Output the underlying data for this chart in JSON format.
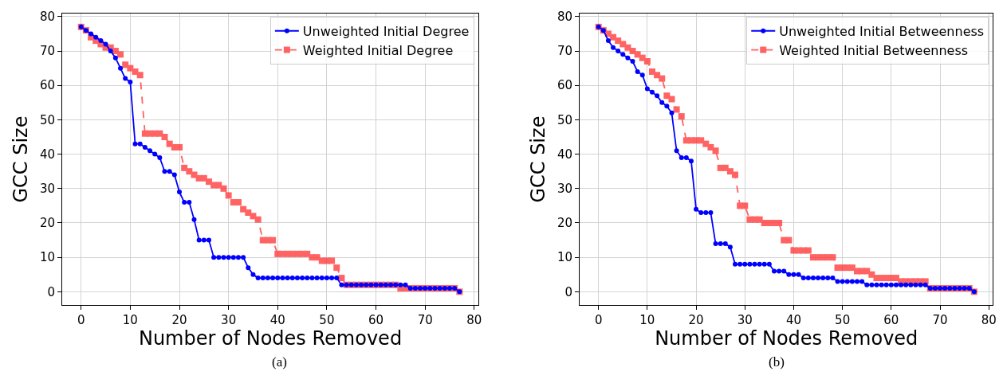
{
  "chart_data": [
    {
      "type": "line",
      "xlabel": "Number of Nodes Removed",
      "ylabel": "GCC Size",
      "annotations": [
        "(a)"
      ],
      "x": [
        0,
        1,
        2,
        3,
        4,
        5,
        6,
        7,
        8,
        9,
        10,
        11,
        12,
        13,
        14,
        15,
        16,
        17,
        18,
        19,
        20,
        21,
        22,
        23,
        24,
        25,
        26,
        27,
        28,
        29,
        30,
        31,
        32,
        33,
        34,
        35,
        36,
        37,
        38,
        39,
        40,
        41,
        42,
        43,
        44,
        45,
        46,
        47,
        48,
        49,
        50,
        51,
        52,
        53,
        54,
        55,
        56,
        57,
        58,
        59,
        60,
        61,
        62,
        63,
        64,
        65,
        66,
        67,
        68,
        69,
        70,
        71,
        72,
        73,
        74,
        75,
        76,
        77
      ],
      "xlim": [
        -3.85,
        80.85
      ],
      "xticks": [
        0,
        10,
        20,
        30,
        40,
        50,
        60,
        70,
        80
      ],
      "ylim": [
        -3.85,
        80.85
      ],
      "yticks": [
        0,
        10,
        20,
        30,
        40,
        50,
        60,
        70,
        80
      ],
      "grid": true,
      "legend": "top right",
      "series": [
        {
          "name": "Unweighted Initial Degree",
          "color": "#0000ff",
          "marker": "circle",
          "line_style": "solid",
          "values": [
            77,
            76,
            75,
            74,
            73,
            72,
            70,
            68,
            65,
            62,
            61,
            43,
            43,
            42,
            41,
            40,
            39,
            35,
            35,
            34,
            29,
            26,
            26,
            21,
            15,
            15,
            15,
            10,
            10,
            10,
            10,
            10,
            10,
            10,
            7,
            5,
            4,
            4,
            4,
            4,
            4,
            4,
            4,
            4,
            4,
            4,
            4,
            4,
            4,
            4,
            4,
            4,
            4,
            2,
            2,
            2,
            2,
            2,
            2,
            2,
            2,
            2,
            2,
            2,
            2,
            2,
            2,
            1,
            1,
            1,
            1,
            1,
            1,
            1,
            1,
            1,
            1,
            0
          ]
        },
        {
          "name": "Weighted Initial Degree",
          "color": "#ff3030",
          "marker": "square",
          "line_style": "dashed",
          "values": [
            77,
            76,
            74,
            73,
            72,
            71,
            71,
            70,
            69,
            66,
            65,
            64,
            63,
            46,
            46,
            46,
            46,
            45,
            43,
            42,
            42,
            36,
            35,
            34,
            33,
            33,
            32,
            31,
            31,
            30,
            28,
            26,
            26,
            24,
            23,
            22,
            21,
            15,
            15,
            15,
            11,
            11,
            11,
            11,
            11,
            11,
            11,
            10,
            10,
            9,
            9,
            9,
            7,
            4,
            2,
            2,
            2,
            2,
            2,
            2,
            2,
            2,
            2,
            2,
            2,
            1,
            1,
            1,
            1,
            1,
            1,
            1,
            1,
            1,
            1,
            1,
            1,
            0
          ]
        }
      ]
    },
    {
      "type": "line",
      "xlabel": "Number of Nodes Removed",
      "ylabel": "GCC Size",
      "annotations": [
        "(b)"
      ],
      "x": [
        0,
        1,
        2,
        3,
        4,
        5,
        6,
        7,
        8,
        9,
        10,
        11,
        12,
        13,
        14,
        15,
        16,
        17,
        18,
        19,
        20,
        21,
        22,
        23,
        24,
        25,
        26,
        27,
        28,
        29,
        30,
        31,
        32,
        33,
        34,
        35,
        36,
        37,
        38,
        39,
        40,
        41,
        42,
        43,
        44,
        45,
        46,
        47,
        48,
        49,
        50,
        51,
        52,
        53,
        54,
        55,
        56,
        57,
        58,
        59,
        60,
        61,
        62,
        63,
        64,
        65,
        66,
        67,
        68,
        69,
        70,
        71,
        72,
        73,
        74,
        75,
        76,
        77
      ],
      "xlim": [
        -3.85,
        80.85
      ],
      "xticks": [
        0,
        10,
        20,
        30,
        40,
        50,
        60,
        70,
        80
      ],
      "ylim": [
        -3.85,
        80.85
      ],
      "yticks": [
        0,
        10,
        20,
        30,
        40,
        50,
        60,
        70,
        80
      ],
      "grid": true,
      "legend": "top right",
      "series": [
        {
          "name": "Unweighted Initial Betweenness",
          "color": "#0000ff",
          "marker": "circle",
          "line_style": "solid",
          "values": [
            77,
            76,
            73,
            71,
            70,
            69,
            68,
            67,
            64,
            63,
            59,
            58,
            57,
            55,
            54,
            52,
            41,
            39,
            39,
            38,
            24,
            23,
            23,
            23,
            14,
            14,
            14,
            13,
            8,
            8,
            8,
            8,
            8,
            8,
            8,
            8,
            6,
            6,
            6,
            5,
            5,
            5,
            4,
            4,
            4,
            4,
            4,
            4,
            4,
            3,
            3,
            3,
            3,
            3,
            3,
            2,
            2,
            2,
            2,
            2,
            2,
            2,
            2,
            2,
            2,
            2,
            2,
            2,
            1,
            1,
            1,
            1,
            1,
            1,
            1,
            1,
            1,
            0
          ]
        },
        {
          "name": "Weighted Initial Betweenness",
          "color": "#ff3030",
          "marker": "square",
          "line_style": "dashed",
          "values": [
            77,
            76,
            75,
            74,
            73,
            72,
            71,
            70,
            69,
            68,
            67,
            64,
            63,
            62,
            57,
            56,
            53,
            51,
            44,
            44,
            44,
            44,
            43,
            42,
            41,
            36,
            36,
            35,
            34,
            25,
            25,
            21,
            21,
            21,
            20,
            20,
            20,
            20,
            15,
            15,
            12,
            12,
            12,
            12,
            10,
            10,
            10,
            10,
            10,
            7,
            7,
            7,
            7,
            6,
            6,
            6,
            5,
            4,
            4,
            4,
            4,
            4,
            3,
            3,
            3,
            3,
            3,
            3,
            1,
            1,
            1,
            1,
            1,
            1,
            1,
            1,
            1,
            0
          ]
        }
      ]
    }
  ]
}
